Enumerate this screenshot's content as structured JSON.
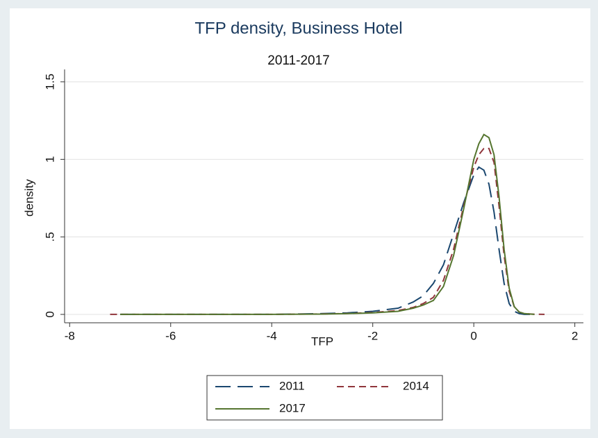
{
  "chart_data": {
    "type": "line",
    "title": "TFP density, Business Hotel",
    "subtitle": "2011-2017",
    "xlabel": "TFP",
    "ylabel": "density",
    "x": [
      -7.2,
      -7,
      -6,
      -5,
      -4,
      -3,
      -2.5,
      -2,
      -1.5,
      -1.2,
      -1,
      -0.8,
      -0.6,
      -0.4,
      -0.2,
      0,
      0.1,
      0.2,
      0.3,
      0.4,
      0.5,
      0.6,
      0.7,
      0.8,
      0.9,
      1,
      1.2,
      1.4
    ],
    "series": [
      {
        "name": "2011",
        "color": "#1a476f",
        "dash": "long",
        "values": [
          null,
          0,
          0,
          0,
          0,
          0.005,
          0.01,
          0.02,
          0.04,
          0.08,
          0.12,
          0.2,
          0.32,
          0.52,
          0.72,
          0.9,
          0.95,
          0.93,
          0.84,
          0.66,
          0.42,
          0.2,
          0.07,
          0.02,
          0.005,
          0,
          0,
          null
        ]
      },
      {
        "name": "2014",
        "color": "#90353b",
        "dash": "short",
        "values": [
          0,
          0,
          0,
          0,
          0,
          0.003,
          0.006,
          0.012,
          0.025,
          0.045,
          0.07,
          0.11,
          0.22,
          0.42,
          0.7,
          0.95,
          1.03,
          1.07,
          1.07,
          0.98,
          0.7,
          0.38,
          0.15,
          0.05,
          0.015,
          0.005,
          0.001,
          0
        ]
      },
      {
        "name": "2017",
        "color": "#55752f",
        "dash": "solid",
        "values": [
          null,
          0,
          0,
          0,
          0,
          0.002,
          0.005,
          0.01,
          0.02,
          0.04,
          0.06,
          0.09,
          0.18,
          0.38,
          0.68,
          1.0,
          1.1,
          1.16,
          1.14,
          1.03,
          0.76,
          0.42,
          0.17,
          0.05,
          0.015,
          0.005,
          0,
          null
        ]
      }
    ],
    "xlim": [
      -8.1,
      2.17
    ],
    "xticks": [
      -8,
      -6,
      -4,
      -2,
      0,
      2
    ],
    "ylim": [
      -0.054,
      1.58
    ],
    "yticks": [
      0,
      {
        "value": 0.5,
        "label": ".5"
      },
      1,
      {
        "value": 1.5,
        "label": "1.5"
      }
    ],
    "grid": true,
    "legend": "bottom"
  }
}
